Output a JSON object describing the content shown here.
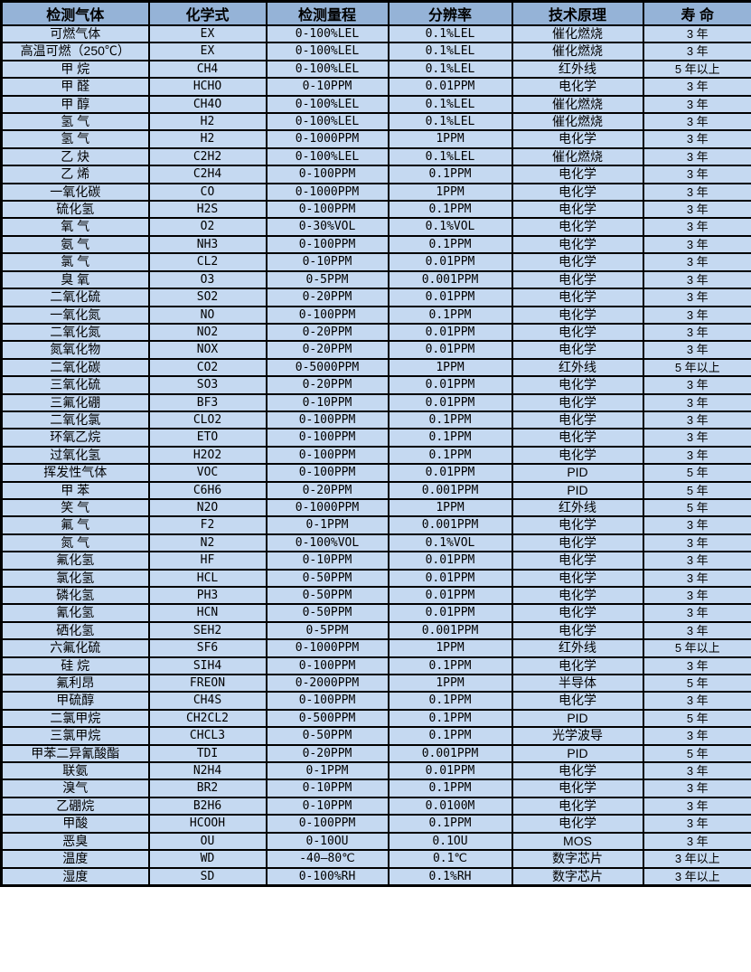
{
  "colors": {
    "header_bg": "#95b3d7",
    "row_bg": "#c5d9f1",
    "border_color": "#000000",
    "text_color": "#000000"
  },
  "table": {
    "headers": [
      "检测气体",
      "化学式",
      "检测量程",
      "分辨率",
      "技术原理",
      "寿 命"
    ],
    "rows": [
      [
        "可燃气体",
        "EX",
        "0-100%LEL",
        "0.1%LEL",
        "催化燃烧",
        "3 年"
      ],
      [
        "高温可燃（250℃）",
        "EX",
        "0-100%LEL",
        "0.1%LEL",
        "催化燃烧",
        "3 年"
      ],
      [
        "甲 烷",
        "CH4",
        "0-100%LEL",
        "0.1%LEL",
        "红外线",
        "5 年以上"
      ],
      [
        "甲 醛",
        "HCHO",
        "0-10PPM",
        "0.01PPM",
        "电化学",
        "3 年"
      ],
      [
        "甲 醇",
        "CH4O",
        "0-100%LEL",
        "0.1%LEL",
        "催化燃烧",
        "3 年"
      ],
      [
        "氢 气",
        "H2",
        "0-100%LEL",
        "0.1%LEL",
        "催化燃烧",
        "3 年"
      ],
      [
        "氢 气",
        "H2",
        "0-1000PPM",
        "1PPM",
        "电化学",
        "3 年"
      ],
      [
        "乙 炔",
        "C2H2",
        "0-100%LEL",
        "0.1%LEL",
        "催化燃烧",
        "3 年"
      ],
      [
        "乙 烯",
        "C2H4",
        "0-100PPM",
        "0.1PPM",
        "电化学",
        "3 年"
      ],
      [
        "一氧化碳",
        "CO",
        "0-1000PPM",
        "1PPM",
        "电化学",
        "3 年"
      ],
      [
        "硫化氢",
        "H2S",
        "0-100PPM",
        "0.1PPM",
        "电化学",
        "3 年"
      ],
      [
        "氧 气",
        "O2",
        "0-30%VOL",
        "0.1%VOL",
        "电化学",
        "3 年"
      ],
      [
        "氨 气",
        "NH3",
        "0-100PPM",
        "0.1PPM",
        "电化学",
        "3 年"
      ],
      [
        "氯 气",
        "CL2",
        "0-10PPM",
        "0.01PPM",
        "电化学",
        "3 年"
      ],
      [
        "臭 氧",
        "O3",
        "0-5PPM",
        "0.001PPM",
        "电化学",
        "3 年"
      ],
      [
        "二氧化硫",
        "SO2",
        "0-20PPM",
        "0.01PPM",
        "电化学",
        "3 年"
      ],
      [
        "一氧化氮",
        "NO",
        "0-100PPM",
        "0.1PPM",
        "电化学",
        "3 年"
      ],
      [
        "二氧化氮",
        "NO2",
        "0-20PPM",
        "0.01PPM",
        "电化学",
        "3 年"
      ],
      [
        "氮氧化物",
        "NOX",
        "0-20PPM",
        "0.01PPM",
        "电化学",
        "3 年"
      ],
      [
        "二氧化碳",
        "CO2",
        "0-5000PPM",
        "1PPM",
        "红外线",
        "5 年以上"
      ],
      [
        "三氧化硫",
        "SO3",
        "0-20PPM",
        "0.01PPM",
        "电化学",
        "3 年"
      ],
      [
        "三氟化硼",
        "BF3",
        "0-10PPM",
        "0.01PPM",
        "电化学",
        "3 年"
      ],
      [
        "二氧化氯",
        "CLO2",
        "0-100PPM",
        "0.1PPM",
        "电化学",
        "3 年"
      ],
      [
        "环氧乙烷",
        "ETO",
        "0-100PPM",
        "0.1PPM",
        "电化学",
        "3 年"
      ],
      [
        "过氧化氢",
        "H2O2",
        "0-100PPM",
        "0.1PPM",
        "电化学",
        "3 年"
      ],
      [
        "挥发性气体",
        "VOC",
        "0-100PPM",
        "0.01PPM",
        "PID",
        "5 年"
      ],
      [
        "甲 苯",
        "C6H6",
        "0-20PPM",
        "0.001PPM",
        "PID",
        "5 年"
      ],
      [
        "笑 气",
        "N2O",
        "0-1000PPM",
        "1PPM",
        "红外线",
        "5 年"
      ],
      [
        "氟 气",
        "F2",
        "0-1PPM",
        "0.001PPM",
        "电化学",
        "3 年"
      ],
      [
        "氮 气",
        "N2",
        "0-100%VOL",
        "0.1%VOL",
        "电化学",
        "3 年"
      ],
      [
        "氟化氢",
        "HF",
        "0-10PPM",
        "0.01PPM",
        "电化学",
        "3 年"
      ],
      [
        "氯化氢",
        "HCL",
        "0-50PPM",
        "0.01PPM",
        "电化学",
        "3 年"
      ],
      [
        "磷化氢",
        "PH3",
        "0-50PPM",
        "0.01PPM",
        "电化学",
        "3 年"
      ],
      [
        "氰化氢",
        "HCN",
        "0-50PPM",
        "0.01PPM",
        "电化学",
        "3 年"
      ],
      [
        "硒化氢",
        "SEH2",
        "0-5PPM",
        "0.001PPM",
        "电化学",
        "3 年"
      ],
      [
        "六氟化硫",
        "SF6",
        "0-1000PPM",
        "1PPM",
        "红外线",
        "5 年以上"
      ],
      [
        "硅 烷",
        "SIH4",
        "0-100PPM",
        "0.1PPM",
        "电化学",
        "3 年"
      ],
      [
        "氟利昂",
        "FREON",
        "0-2000PPM",
        "1PPM",
        "半导体",
        "5 年"
      ],
      [
        "甲硫醇",
        "CH4S",
        "0-100PPM",
        "0.1PPM",
        "电化学",
        "3 年"
      ],
      [
        "二氯甲烷",
        "CH2CL2",
        "0-500PPM",
        "0.1PPM",
        "PID",
        "5 年"
      ],
      [
        "三氯甲烷",
        "CHCL3",
        "0-50PPM",
        "0.1PPM",
        "光学波导",
        "3 年"
      ],
      [
        "甲苯二异氰酸酯",
        "TDI",
        "0-20PPM",
        "0.001PPM",
        "PID",
        "5 年"
      ],
      [
        "联氨",
        "N2H4",
        "0-1PPM",
        "0.01PPM",
        "电化学",
        "3 年"
      ],
      [
        "溴气",
        "BR2",
        "0-10PPM",
        "0.1PPM",
        "电化学",
        "3 年"
      ],
      [
        "乙硼烷",
        "B2H6",
        "0-10PPM",
        "0.0100M",
        "电化学",
        "3 年"
      ],
      [
        "甲酸",
        "HCOOH",
        "0-100PPM",
        "0.1PPM",
        "电化学",
        "3 年"
      ],
      [
        "恶臭",
        "OU",
        "0-10OU",
        "0.1OU",
        "MOS",
        "3 年"
      ],
      [
        "温度",
        "WD",
        "-40—80℃",
        "0.1℃",
        "数字芯片",
        "3 年以上"
      ],
      [
        "湿度",
        "SD",
        "0-100%RH",
        "0.1%RH",
        "数字芯片",
        "3 年以上"
      ]
    ]
  }
}
